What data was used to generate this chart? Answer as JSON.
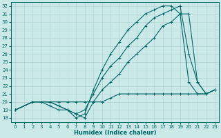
{
  "xlabel": "Humidex (Indice chaleur)",
  "bg_color": "#cce9e9",
  "grid_color": "#b0d4d4",
  "line_color": "#006666",
  "xlim": [
    -0.5,
    23.5
  ],
  "ylim": [
    17.5,
    32.5
  ],
  "xticks": [
    0,
    1,
    2,
    3,
    4,
    5,
    6,
    7,
    8,
    9,
    10,
    11,
    12,
    13,
    14,
    15,
    16,
    17,
    18,
    19,
    20,
    21,
    22,
    23
  ],
  "yticks": [
    18,
    19,
    20,
    21,
    22,
    23,
    24,
    25,
    26,
    27,
    28,
    29,
    30,
    31,
    32
  ],
  "lines": [
    {
      "x": [
        0,
        2,
        3,
        4,
        5,
        6,
        7,
        8,
        9,
        10,
        11,
        12,
        13,
        14,
        15,
        16,
        17,
        18,
        19,
        20,
        21,
        22,
        23
      ],
      "y": [
        19,
        20,
        20,
        20,
        20,
        20,
        20,
        20,
        20,
        20,
        20.5,
        21,
        21,
        21,
        21,
        21,
        21,
        21,
        21,
        21,
        21,
        21,
        21.5
      ]
    },
    {
      "x": [
        0,
        2,
        3,
        4,
        5,
        6,
        7,
        8,
        9,
        10,
        11,
        12,
        13,
        14,
        15,
        16,
        17,
        18,
        19,
        20,
        21,
        22,
        23
      ],
      "y": [
        19,
        20,
        20,
        20,
        19.5,
        19,
        18.5,
        19,
        21,
        23,
        24.5,
        25.5,
        27,
        28,
        29.5,
        30.5,
        31,
        31.5,
        32,
        26,
        22.5,
        21,
        21.5
      ]
    },
    {
      "x": [
        0,
        2,
        3,
        4,
        5,
        6,
        7,
        8,
        9,
        10,
        11,
        12,
        13,
        14,
        15,
        16,
        17,
        18,
        19,
        20,
        21,
        22,
        23
      ],
      "y": [
        19,
        20,
        20,
        20,
        19.5,
        19,
        18,
        18.5,
        21.5,
        24,
        26,
        27.5,
        29,
        30,
        31,
        31.5,
        32,
        32,
        31,
        22.5,
        21,
        21,
        21.5
      ]
    },
    {
      "x": [
        0,
        2,
        3,
        4,
        5,
        6,
        7,
        8,
        9,
        10,
        11,
        12,
        13,
        14,
        15,
        16,
        17,
        18,
        19,
        20,
        21,
        22,
        23
      ],
      "y": [
        19,
        20,
        20,
        19.5,
        19,
        19,
        18.5,
        18,
        20,
        21.5,
        22.5,
        23.5,
        25,
        26,
        27,
        28,
        29.5,
        30,
        31,
        31,
        22.5,
        21,
        21.5
      ]
    }
  ]
}
